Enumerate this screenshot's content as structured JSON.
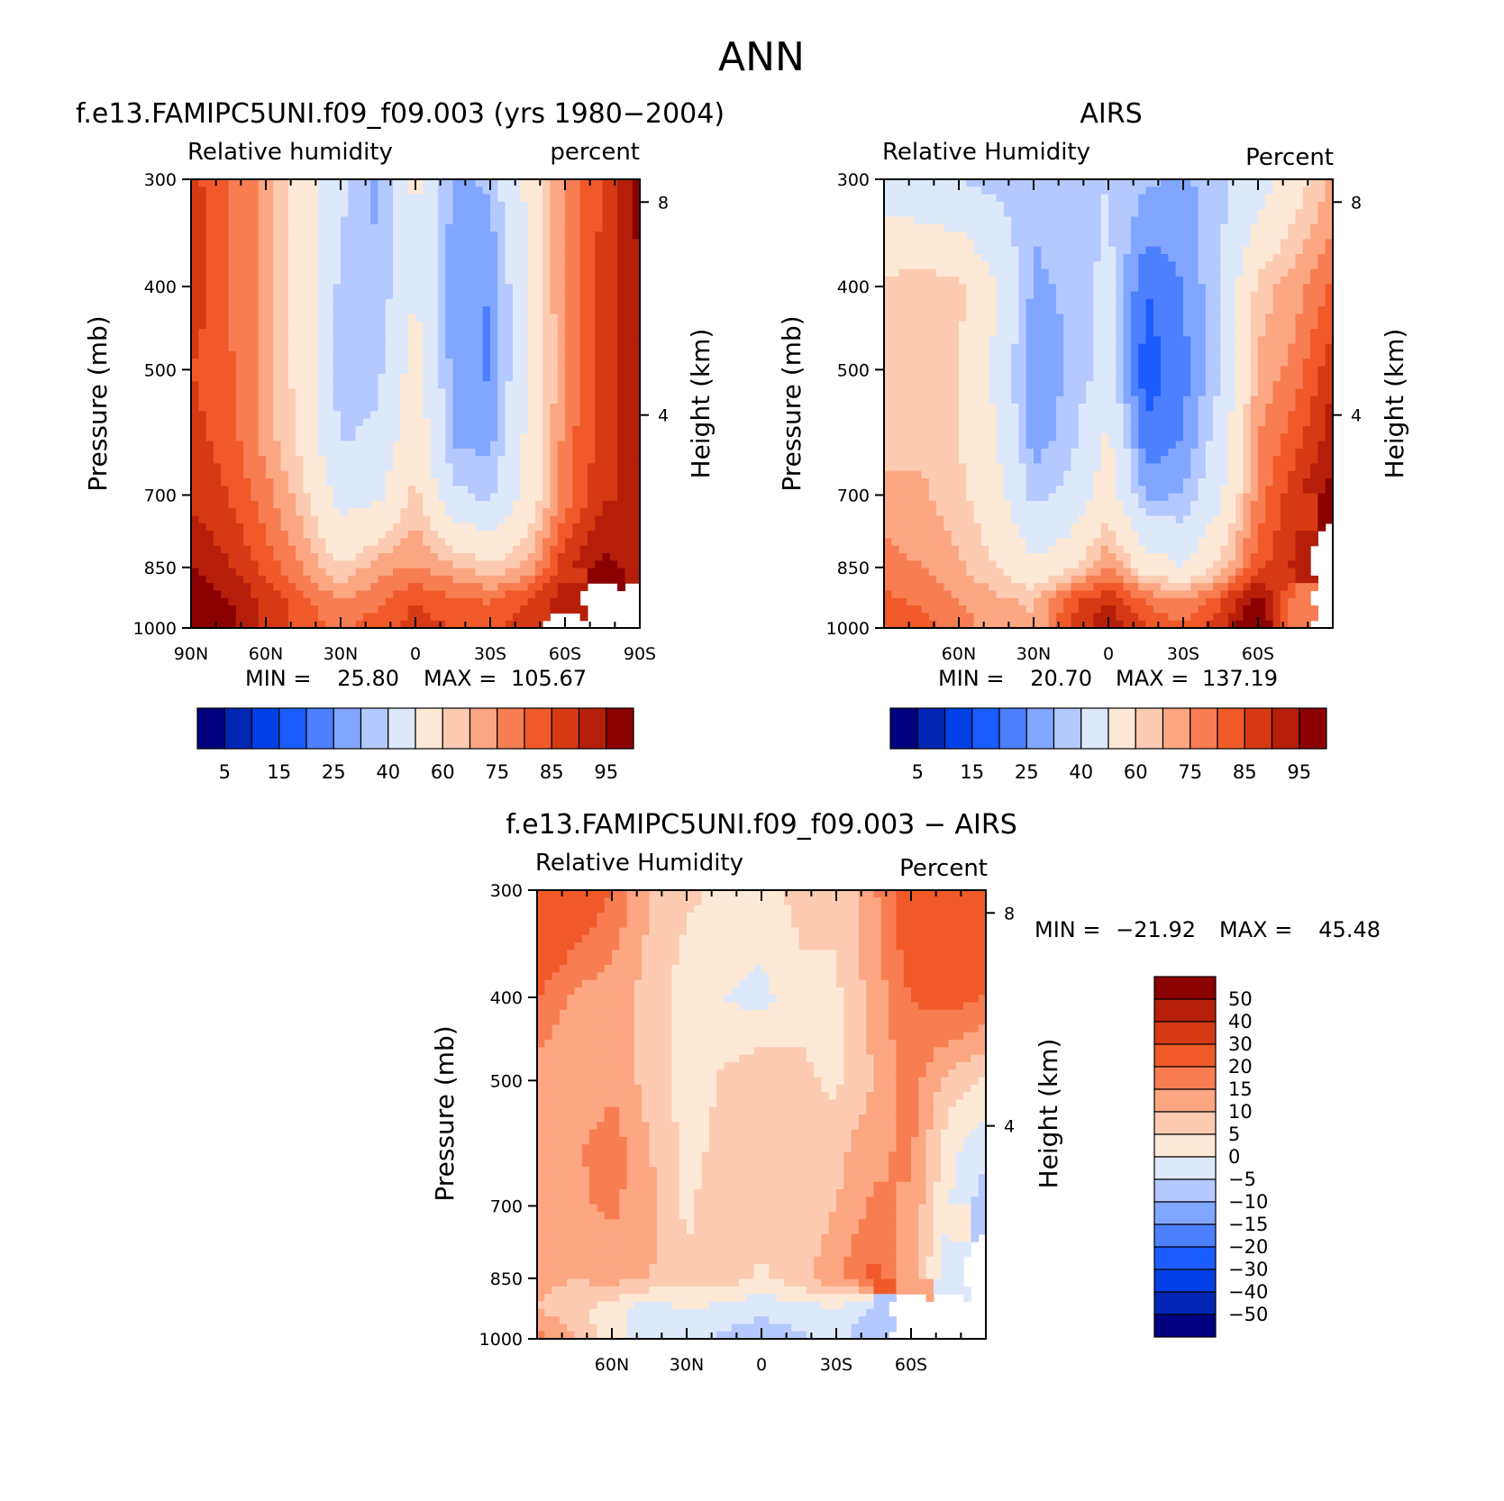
{
  "figure_title": "ANN",
  "colors": {
    "rh_scale": [
      "#000080",
      "#0026b3",
      "#0040e6",
      "#1a5cff",
      "#4c80ff",
      "#80a6ff",
      "#b3c9ff",
      "#dde9fb",
      "#fee9d7",
      "#fdcbb2",
      "#fca682",
      "#f87d52",
      "#f05a28",
      "#d63a14",
      "#b51f0a",
      "#8b0000"
    ],
    "diff_scale": [
      "#8b0000",
      "#b51f0a",
      "#d63a14",
      "#f05a28",
      "#f87d52",
      "#fca682",
      "#fdcbb2",
      "#fee9d7",
      "#dde9fb",
      "#b3c9ff",
      "#80a6ff",
      "#4c80ff",
      "#1a5cff",
      "#0040e6",
      "#0026b3",
      "#000080"
    ]
  },
  "chart_data": [
    {
      "type": "heatmap",
      "panel": "model",
      "title": "f.e13.FAMIPC5UNI.f09_f09.003 (yrs 1980−2004)",
      "left_label": "Relative humidity",
      "right_label": "percent",
      "ylabel": "Pressure (mb)",
      "ylabel_right": "Height (km)",
      "x_ticks": [
        "90N",
        "60N",
        "30N",
        "0",
        "30S",
        "60S",
        "90S"
      ],
      "y_ticks": [
        "300",
        "400",
        "500",
        "700",
        "850",
        "1000"
      ],
      "height_ticks": [
        "8",
        "4"
      ],
      "xlim": [
        90,
        -90
      ],
      "ylim": [
        1000,
        300
      ],
      "min_label": "MIN =",
      "min": "25.80",
      "max_label": "MAX =",
      "max": "105.67",
      "colorbar_labels": [
        "5",
        "15",
        "25",
        "40",
        "60",
        "75",
        "85",
        "95"
      ],
      "x": [
        90,
        75,
        60,
        45,
        30,
        15,
        0,
        -15,
        -30,
        -45,
        -60,
        -75,
        -90
      ],
      "y": [
        300,
        400,
        500,
        600,
        700,
        850,
        925,
        1000
      ],
      "z": [
        [
          82,
          75,
          68,
          55,
          42,
          34,
          52,
          34,
          36,
          52,
          72,
          80,
          92
        ],
        [
          84,
          75,
          68,
          56,
          38,
          35,
          50,
          32,
          30,
          50,
          72,
          82,
          90
        ],
        [
          80,
          76,
          68,
          56,
          37,
          38,
          55,
          33,
          29,
          50,
          70,
          82,
          88
        ],
        [
          82,
          78,
          68,
          58,
          39,
          42,
          58,
          34,
          33,
          52,
          72,
          83,
          88
        ],
        [
          84,
          80,
          72,
          62,
          46,
          48,
          62,
          42,
          38,
          54,
          72,
          84,
          86
        ],
        [
          90,
          86,
          78,
          70,
          60,
          68,
          70,
          66,
          62,
          66,
          84,
          92,
          88
        ],
        [
          95,
          90,
          84,
          76,
          70,
          74,
          80,
          76,
          74,
          80,
          88,
          null,
          null
        ],
        [
          98,
          92,
          84,
          78,
          74,
          78,
          82,
          80,
          80,
          82,
          null,
          null,
          null
        ]
      ]
    },
    {
      "type": "heatmap",
      "panel": "obs",
      "title": "AIRS",
      "left_label": "Relative Humidity",
      "right_label": "Percent",
      "ylabel": "Pressure (mb)",
      "ylabel_right": "Height (km)",
      "x_ticks": [
        "60N",
        "30N",
        "0",
        "30S",
        "60S"
      ],
      "y_ticks": [
        "300",
        "400",
        "500",
        "700",
        "850",
        "1000"
      ],
      "height_ticks": [
        "8",
        "4"
      ],
      "xlim": [
        90,
        -90
      ],
      "ylim": [
        1000,
        300
      ],
      "min_label": "MIN =",
      "min": "20.70",
      "max_label": "MAX =",
      "max": "137.19",
      "colorbar_labels": [
        "5",
        "15",
        "25",
        "40",
        "60",
        "75",
        "85",
        "95"
      ],
      "x": [
        90,
        75,
        60,
        45,
        30,
        15,
        0,
        -15,
        -30,
        -45,
        -60,
        -75,
        -90
      ],
      "y": [
        300,
        400,
        500,
        600,
        700,
        850,
        925,
        1000
      ],
      "z": [
        [
          45,
          42,
          40,
          38,
          36,
          38,
          40,
          36,
          34,
          38,
          44,
          56,
          66
        ],
        [
          62,
          64,
          62,
          50,
          34,
          36,
          42,
          25,
          30,
          40,
          62,
          68,
          76
        ],
        [
          65,
          65,
          60,
          48,
          30,
          36,
          42,
          22,
          28,
          40,
          66,
          72,
          84
        ],
        [
          60,
          64,
          60,
          50,
          32,
          38,
          52,
          26,
          30,
          44,
          70,
          78,
          88
        ],
        [
          68,
          66,
          62,
          54,
          38,
          42,
          56,
          34,
          35,
          48,
          72,
          84,
          92
        ],
        [
          72,
          70,
          66,
          60,
          52,
          58,
          70,
          56,
          50,
          62,
          78,
          86,
          null
        ],
        [
          76,
          74,
          70,
          66,
          64,
          78,
          84,
          74,
          70,
          78,
          94,
          72,
          null
        ],
        [
          80,
          78,
          72,
          68,
          66,
          80,
          90,
          80,
          76,
          84,
          100,
          70,
          null
        ]
      ]
    },
    {
      "type": "heatmap",
      "panel": "difference",
      "title": "f.e13.FAMIPC5UNI.f09_f09.003 − AIRS",
      "left_label": "Relative Humidity",
      "right_label": "Percent",
      "ylabel": "Pressure (mb)",
      "ylabel_right": "Height (km)",
      "x_ticks": [
        "60N",
        "30N",
        "0",
        "30S",
        "60S"
      ],
      "y_ticks": [
        "300",
        "400",
        "500",
        "700",
        "850",
        "1000"
      ],
      "height_ticks": [
        "8",
        "4"
      ],
      "xlim": [
        90,
        -90
      ],
      "ylim": [
        1000,
        300
      ],
      "min_label": "MIN =",
      "min": "−21.92",
      "max_label": "MAX =",
      "max": "45.48",
      "colorbar_labels": [
        "50",
        "40",
        "30",
        "20",
        "15",
        "10",
        "5",
        "0",
        "−5",
        "−10",
        "−15",
        "−20",
        "−30",
        "−40",
        "−50"
      ],
      "x": [
        90,
        75,
        60,
        45,
        30,
        15,
        0,
        -15,
        -30,
        -45,
        -60,
        -75,
        -90
      ],
      "y": [
        300,
        400,
        500,
        600,
        700,
        850,
        925,
        1000
      ],
      "z": [
        [
          30,
          26,
          20,
          10,
          6,
          4,
          4,
          6,
          6,
          14,
          26,
          30,
          30
        ],
        [
          20,
          14,
          12,
          8,
          2,
          0,
          -2,
          4,
          4,
          12,
          20,
          22,
          20
        ],
        [
          12,
          10,
          14,
          8,
          2,
          6,
          10,
          6,
          4,
          10,
          18,
          8,
          4
        ],
        [
          10,
          14,
          18,
          10,
          4,
          6,
          8,
          6,
          8,
          14,
          16,
          2,
          -4
        ],
        [
          10,
          14,
          16,
          12,
          4,
          8,
          8,
          6,
          10,
          16,
          14,
          0,
          -8
        ],
        [
          12,
          10,
          12,
          10,
          6,
          8,
          4,
          8,
          14,
          22,
          12,
          -4,
          null
        ],
        [
          10,
          6,
          2,
          -4,
          0,
          -2,
          -4,
          -2,
          -2,
          -6,
          null,
          null,
          null
        ],
        [
          18,
          10,
          2,
          -4,
          -2,
          -6,
          -8,
          -6,
          -4,
          -8,
          null,
          null,
          null
        ]
      ]
    }
  ]
}
